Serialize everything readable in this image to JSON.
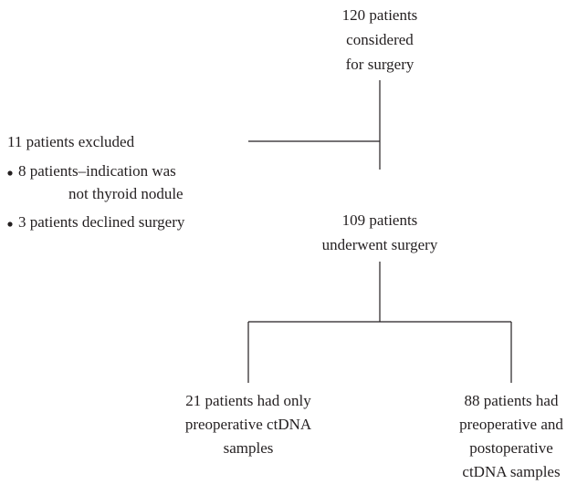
{
  "nodes": [
    {
      "lines": [
        "120 patients",
        "considered",
        "for surgery"
      ]
    },
    {
      "lines": [
        "109 patients",
        "underwent surgery"
      ]
    },
    {
      "lines": [
        "21 patients had only",
        "preoperative ctDNA",
        "samples"
      ]
    },
    {
      "lines": [
        "88 patients had",
        "preoperative and",
        "postoperative",
        "ctDNA samples"
      ]
    }
  ],
  "exclusion": {
    "title": "11 patients excluded",
    "items": [
      {
        "lines": [
          "8 patients–indication was",
          "not thyroid nodule"
        ]
      },
      {
        "lines": [
          "3 patients declined surgery"
        ]
      }
    ]
  }
}
